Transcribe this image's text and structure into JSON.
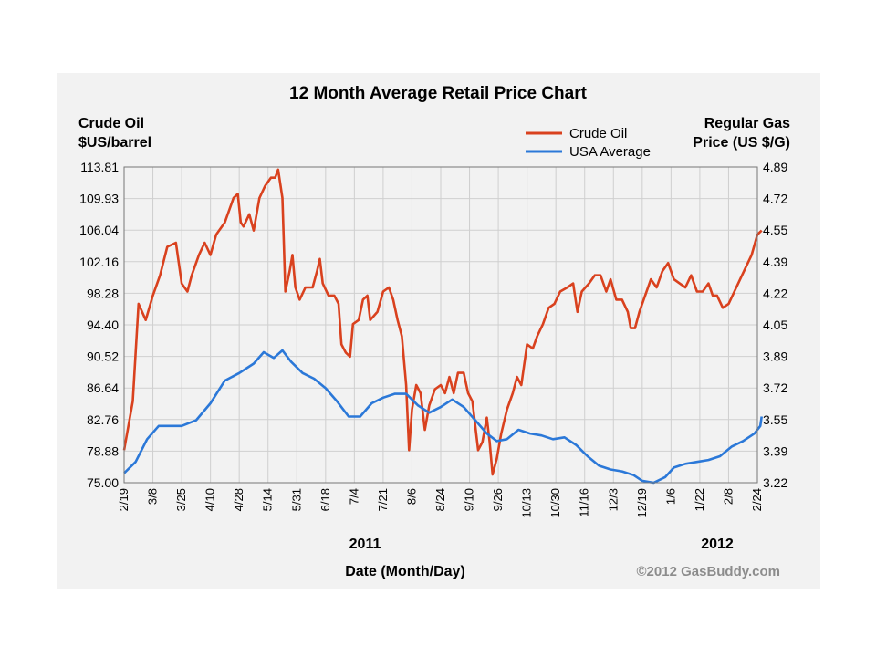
{
  "chart_data": {
    "type": "line",
    "title": "12 Month Average Retail Price Chart",
    "left_axis_label": [
      "Crude Oil",
      "$US/barrel"
    ],
    "right_axis_label": [
      "Regular Gas",
      "Price (US $/G)"
    ],
    "xlabel": "Date (Month/Day)",
    "year_labels": [
      "2011",
      "2012"
    ],
    "copyright": "©2012 GasBuddy.com",
    "legend_position": "top-right",
    "grid": true,
    "x_ticks": [
      "2/19",
      "3/8",
      "3/25",
      "4/10",
      "4/28",
      "5/14",
      "5/31",
      "6/18",
      "7/4",
      "7/21",
      "8/6",
      "8/24",
      "9/10",
      "9/26",
      "10/13",
      "10/30",
      "11/16",
      "12/3",
      "12/19",
      "1/6",
      "1/22",
      "2/8",
      "2/24"
    ],
    "y_left_ticks": [
      "75.00",
      "78.88",
      "82.76",
      "86.64",
      "90.52",
      "94.40",
      "98.28",
      "102.16",
      "106.04",
      "109.93",
      "113.81"
    ],
    "y_right_ticks": [
      "3.22",
      "3.39",
      "3.55",
      "3.72",
      "3.89",
      "4.05",
      "4.22",
      "4.39",
      "4.55",
      "4.72",
      "4.89"
    ],
    "y_left_lim": [
      75.0,
      113.81
    ],
    "y_right_lim": [
      3.22,
      4.89
    ],
    "series": [
      {
        "name": "Crude Oil",
        "axis": "left",
        "color": "#d9411e",
        "points": [
          [
            0,
            79
          ],
          [
            0.3,
            85
          ],
          [
            0.5,
            97
          ],
          [
            0.75,
            95
          ],
          [
            1.0,
            98
          ],
          [
            1.25,
            100.5
          ],
          [
            1.5,
            104
          ],
          [
            1.8,
            104.5
          ],
          [
            2.0,
            99.5
          ],
          [
            2.2,
            98.5
          ],
          [
            2.35,
            100.5
          ],
          [
            2.6,
            103
          ],
          [
            2.8,
            104.5
          ],
          [
            3.0,
            103
          ],
          [
            3.2,
            105.5
          ],
          [
            3.5,
            107
          ],
          [
            3.8,
            110
          ],
          [
            3.95,
            110.5
          ],
          [
            4.05,
            107
          ],
          [
            4.15,
            106.5
          ],
          [
            4.35,
            108
          ],
          [
            4.5,
            106
          ],
          [
            4.7,
            110
          ],
          [
            4.9,
            111.5
          ],
          [
            5.1,
            112.5
          ],
          [
            5.25,
            112.5
          ],
          [
            5.35,
            113.5
          ],
          [
            5.5,
            110
          ],
          [
            5.6,
            98.5
          ],
          [
            5.75,
            101
          ],
          [
            5.85,
            103
          ],
          [
            5.95,
            99
          ],
          [
            6.1,
            97.5
          ],
          [
            6.3,
            99
          ],
          [
            6.55,
            99
          ],
          [
            6.7,
            101
          ],
          [
            6.8,
            102.5
          ],
          [
            6.9,
            99.5
          ],
          [
            7.1,
            98
          ],
          [
            7.3,
            98
          ],
          [
            7.45,
            97
          ],
          [
            7.55,
            92
          ],
          [
            7.7,
            91
          ],
          [
            7.85,
            90.5
          ],
          [
            7.95,
            94.5
          ],
          [
            8.15,
            95
          ],
          [
            8.3,
            97.5
          ],
          [
            8.45,
            98
          ],
          [
            8.55,
            95
          ],
          [
            8.8,
            96
          ],
          [
            9.0,
            98.5
          ],
          [
            9.2,
            99
          ],
          [
            9.35,
            97.5
          ],
          [
            9.5,
            95
          ],
          [
            9.65,
            93
          ],
          [
            9.8,
            87
          ],
          [
            9.9,
            79
          ],
          [
            10.0,
            84
          ],
          [
            10.15,
            87
          ],
          [
            10.3,
            86
          ],
          [
            10.45,
            81.5
          ],
          [
            10.6,
            84.5
          ],
          [
            10.8,
            86.5
          ],
          [
            11.0,
            87
          ],
          [
            11.15,
            86
          ],
          [
            11.3,
            88
          ],
          [
            11.45,
            86
          ],
          [
            11.6,
            88.5
          ],
          [
            11.8,
            88.5
          ],
          [
            11.95,
            86
          ],
          [
            12.1,
            85
          ],
          [
            12.3,
            79
          ],
          [
            12.45,
            80
          ],
          [
            12.6,
            83
          ],
          [
            12.7,
            80
          ],
          [
            12.8,
            76
          ],
          [
            12.95,
            78
          ],
          [
            13.1,
            81
          ],
          [
            13.3,
            84
          ],
          [
            13.5,
            86
          ],
          [
            13.65,
            88
          ],
          [
            13.8,
            87
          ],
          [
            14.0,
            92
          ],
          [
            14.2,
            91.5
          ],
          [
            14.35,
            93
          ],
          [
            14.55,
            94.5
          ],
          [
            14.75,
            96.5
          ],
          [
            14.95,
            97
          ],
          [
            15.15,
            98.5
          ],
          [
            15.4,
            99
          ],
          [
            15.6,
            99.5
          ],
          [
            15.75,
            96
          ],
          [
            15.9,
            98.5
          ],
          [
            16.15,
            99.5
          ],
          [
            16.35,
            100.5
          ],
          [
            16.55,
            100.5
          ],
          [
            16.75,
            98.5
          ],
          [
            16.9,
            100
          ],
          [
            17.1,
            97.5
          ],
          [
            17.3,
            97.5
          ],
          [
            17.5,
            96
          ],
          [
            17.6,
            94
          ],
          [
            17.75,
            94
          ],
          [
            17.9,
            96
          ],
          [
            18.1,
            98
          ],
          [
            18.3,
            100
          ],
          [
            18.5,
            99
          ],
          [
            18.7,
            101
          ],
          [
            18.9,
            102
          ],
          [
            19.1,
            100
          ],
          [
            19.3,
            99.5
          ],
          [
            19.5,
            99
          ],
          [
            19.7,
            100.5
          ],
          [
            19.9,
            98.5
          ],
          [
            20.1,
            98.5
          ],
          [
            20.3,
            99.5
          ],
          [
            20.45,
            98
          ],
          [
            20.6,
            98
          ],
          [
            20.8,
            96.5
          ],
          [
            21.0,
            97
          ],
          [
            21.2,
            98.5
          ],
          [
            21.4,
            100
          ],
          [
            21.6,
            101.5
          ],
          [
            21.8,
            103
          ],
          [
            22.0,
            105.5
          ],
          [
            22.15,
            106
          ]
        ]
      },
      {
        "name": "USA Average",
        "axis": "right",
        "color": "#2b78d8",
        "points": [
          [
            0,
            3.27
          ],
          [
            0.4,
            3.33
          ],
          [
            0.8,
            3.45
          ],
          [
            1.2,
            3.52
          ],
          [
            1.6,
            3.52
          ],
          [
            2.0,
            3.52
          ],
          [
            2.5,
            3.55
          ],
          [
            3.0,
            3.64
          ],
          [
            3.5,
            3.76
          ],
          [
            4.0,
            3.8
          ],
          [
            4.5,
            3.85
          ],
          [
            4.85,
            3.91
          ],
          [
            5.2,
            3.88
          ],
          [
            5.5,
            3.92
          ],
          [
            5.8,
            3.86
          ],
          [
            6.2,
            3.8
          ],
          [
            6.6,
            3.77
          ],
          [
            7.0,
            3.72
          ],
          [
            7.4,
            3.65
          ],
          [
            7.8,
            3.57
          ],
          [
            8.2,
            3.57
          ],
          [
            8.6,
            3.64
          ],
          [
            9.0,
            3.67
          ],
          [
            9.4,
            3.69
          ],
          [
            9.8,
            3.69
          ],
          [
            10.2,
            3.63
          ],
          [
            10.6,
            3.59
          ],
          [
            11.0,
            3.62
          ],
          [
            11.4,
            3.66
          ],
          [
            11.8,
            3.62
          ],
          [
            12.2,
            3.55
          ],
          [
            12.6,
            3.48
          ],
          [
            12.95,
            3.44
          ],
          [
            13.3,
            3.45
          ],
          [
            13.7,
            3.5
          ],
          [
            14.1,
            3.48
          ],
          [
            14.5,
            3.47
          ],
          [
            14.9,
            3.45
          ],
          [
            15.3,
            3.46
          ],
          [
            15.7,
            3.42
          ],
          [
            16.1,
            3.36
          ],
          [
            16.5,
            3.31
          ],
          [
            16.9,
            3.29
          ],
          [
            17.3,
            3.28
          ],
          [
            17.7,
            3.26
          ],
          [
            18.0,
            3.23
          ],
          [
            18.4,
            3.22
          ],
          [
            18.8,
            3.25
          ],
          [
            19.1,
            3.3
          ],
          [
            19.5,
            3.32
          ],
          [
            19.9,
            3.33
          ],
          [
            20.3,
            3.34
          ],
          [
            20.7,
            3.36
          ],
          [
            21.1,
            3.41
          ],
          [
            21.5,
            3.44
          ],
          [
            21.9,
            3.48
          ],
          [
            22.1,
            3.52
          ],
          [
            22.15,
            3.57
          ]
        ]
      }
    ]
  }
}
